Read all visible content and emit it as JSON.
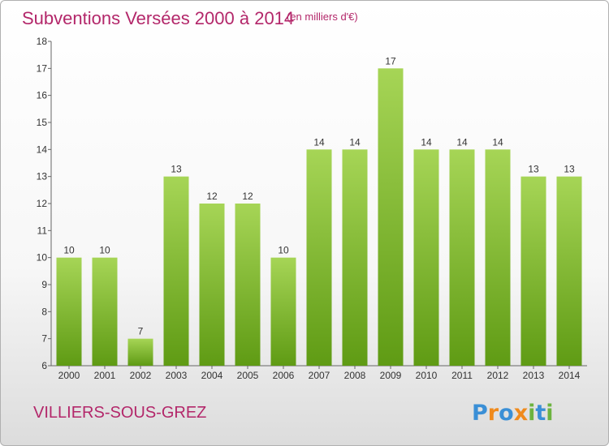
{
  "chart_data": {
    "type": "bar",
    "title": "Subventions Versées 2000 à 2014",
    "subtitle": "(en milliers d'€)",
    "categories": [
      "2000",
      "2001",
      "2002",
      "2003",
      "2004",
      "2005",
      "2006",
      "2007",
      "2008",
      "2009",
      "2010",
      "2011",
      "2012",
      "2013",
      "2014"
    ],
    "values": [
      10,
      10,
      7,
      13,
      12,
      12,
      10,
      14,
      14,
      17,
      14,
      14,
      14,
      13,
      13
    ],
    "ylim": [
      6,
      18
    ],
    "yticks": [
      6,
      7,
      8,
      9,
      10,
      11,
      12,
      13,
      14,
      15,
      16,
      17,
      18
    ],
    "grid": false,
    "bar_color_top": "#a6d556",
    "bar_color_bottom": "#5f9b14"
  },
  "footer": {
    "commune": "VILLIERS-SOUS-GREZ",
    "brand": "Proxiti",
    "brand_letters": [
      {
        "ch": "P",
        "color": "#3a8fd6"
      },
      {
        "ch": "r",
        "color": "#f08a1c"
      },
      {
        "ch": "o",
        "color": "#3a8fd6"
      },
      {
        "ch": "x",
        "color": "#f08a1c"
      },
      {
        "ch": "i",
        "color": "#6cb33f"
      },
      {
        "ch": "t",
        "color": "#3a8fd6"
      },
      {
        "ch": "i",
        "color": "#6cb33f"
      }
    ],
    "title_color": "#b3276a"
  }
}
